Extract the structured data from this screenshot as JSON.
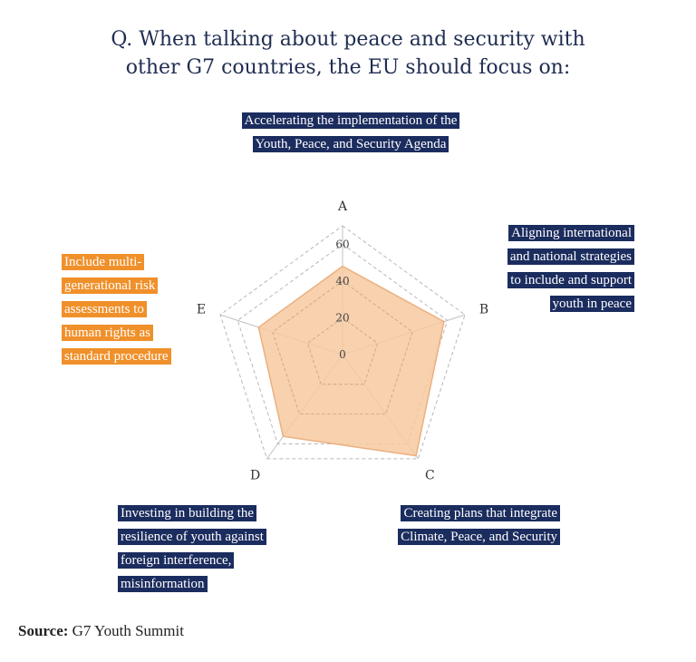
{
  "title_line1": "Q. When talking about peace and security with",
  "title_line2": "other G7 countries, the EU should focus on:",
  "callouts": {
    "A": "Accelerating the implementation of the Youth, Peace, and Security Agenda",
    "B": "Aligning international and national strategies to include and support youth in peace",
    "C": "Creating plans that integrate Climate, Peace, and Security",
    "D": "Investing in building the resilience of youth against foreign interference, misinformation",
    "E": "Include multi-generational risk assessments to human rights as standard procedure"
  },
  "source_label": "Source:",
  "source_text": "G7 Youth Summit",
  "colors": {
    "navy": "#1b2c5e",
    "orange": "#f0902a",
    "fill": "#f7c9a0",
    "stroke": "#ebb080"
  },
  "chart_data": {
    "type": "radar",
    "categories": [
      "A",
      "B",
      "C",
      "D",
      "E"
    ],
    "values": [
      48,
      58,
      68,
      55,
      48
    ],
    "rlim": [
      0,
      70
    ],
    "ticks": [
      0,
      20,
      40,
      60
    ],
    "grid": true
  }
}
